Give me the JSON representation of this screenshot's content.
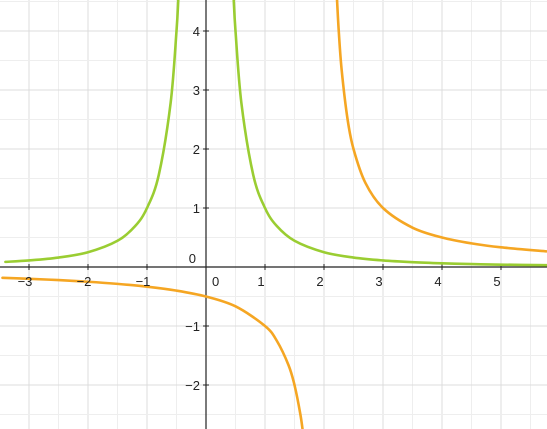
{
  "chart_data": {
    "type": "line",
    "title": "",
    "xlabel": "",
    "ylabel": "",
    "xlim": [
      -3.45,
      5.8
    ],
    "ylim": [
      -2.75,
      4.5
    ],
    "grid": true,
    "x_ticks": [
      -3,
      -2,
      -1,
      0,
      1,
      2,
      3,
      4,
      5
    ],
    "x_tick_labels": [
      "−3",
      "−2",
      "−1",
      "0",
      "1",
      "2",
      "3",
      "4",
      "5"
    ],
    "y_ticks": [
      -2,
      -1,
      0,
      1,
      2,
      3,
      4
    ],
    "y_tick_labels": [
      "−2",
      "−1",
      "0",
      "1",
      "2",
      "3",
      "4"
    ],
    "series": [
      {
        "color": "#9acd32",
        "x": [
          -3.4,
          -3,
          -2.5,
          -2,
          -1.5,
          -1.2,
          -1,
          -0.8,
          -0.6,
          -0.5,
          -0.47,
          0.47,
          0.5,
          0.6,
          0.8,
          1,
          1.2,
          1.5,
          2,
          2.5,
          3,
          3.5,
          4,
          4.5,
          5,
          5.8
        ],
        "y": [
          0.087,
          0.111,
          0.16,
          0.25,
          0.444,
          0.694,
          1.0,
          1.563,
          2.778,
          4.0,
          4.527,
          4.527,
          4.0,
          2.778,
          1.563,
          1.0,
          0.694,
          0.444,
          0.25,
          0.16,
          0.111,
          0.082,
          0.063,
          0.049,
          0.04,
          0.03
        ]
      },
      {
        "color": "#f5a623",
        "x": [
          -3.45,
          -3,
          -2.5,
          -2,
          -1.5,
          -1,
          -0.5,
          0,
          0.5,
          1,
          1.2,
          1.4,
          1.5,
          1.6,
          1.65,
          2.22,
          2.25,
          2.3,
          2.4,
          2.5,
          2.7,
          3,
          3.5,
          4,
          4.5,
          5,
          5.8
        ],
        "y": [
          -0.183,
          -0.2,
          -0.222,
          -0.25,
          -0.286,
          -0.333,
          -0.4,
          -0.5,
          -0.667,
          -1.0,
          -1.25,
          -1.667,
          -2.0,
          -2.5,
          -2.857,
          4.545,
          4.0,
          3.333,
          2.5,
          2.0,
          1.429,
          1.0,
          0.667,
          0.5,
          0.4,
          0.333,
          0.263
        ]
      }
    ]
  }
}
